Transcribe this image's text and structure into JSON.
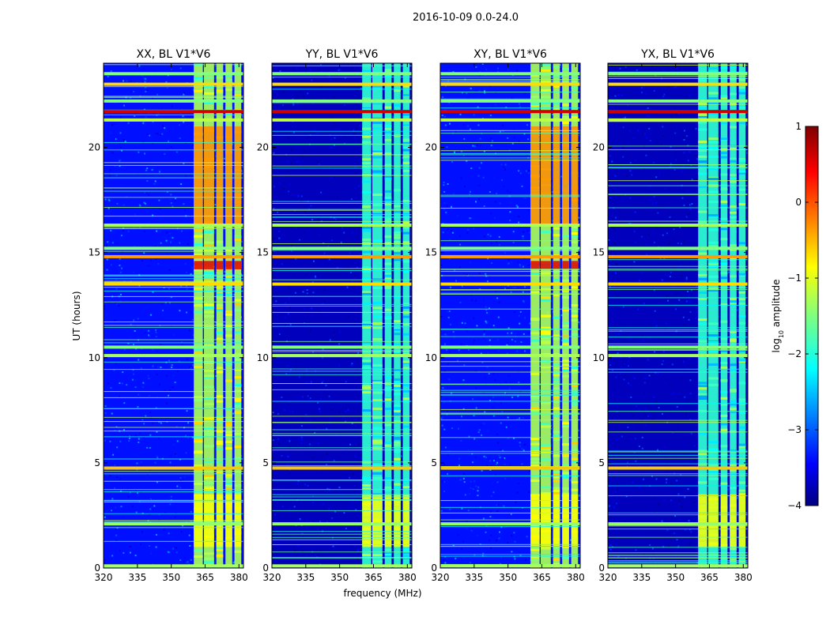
{
  "chart_data": {
    "type": "heatmap",
    "suptitle": "2016-10-09 0.0-24.0",
    "xlabel": "frequency (MHz)",
    "ylabel": "UT (hours)",
    "xlim": [
      320,
      382
    ],
    "ylim": [
      0,
      24
    ],
    "xticks": [
      320,
      335,
      350,
      365,
      380
    ],
    "xtick_labels": [
      "320",
      "335",
      "350",
      "365",
      "380"
    ],
    "yticks": [
      0,
      5,
      10,
      15,
      20
    ],
    "ytick_labels": [
      "0",
      "5",
      "10",
      "15",
      "20"
    ],
    "colorbar": {
      "label_prefix": "log",
      "label_sub": "10",
      "label_suffix": " amplitude",
      "range": [
        -4,
        1
      ],
      "ticks": [
        -4,
        -3,
        -2,
        -1,
        0,
        1
      ],
      "tick_labels": [
        "−4",
        "−3",
        "−2",
        "−1",
        "0",
        "1"
      ],
      "colormap": "jet"
    },
    "panels": [
      {
        "title": "XX, BL V1*V6",
        "pol": "XX",
        "base_level": -3.3,
        "band_level": -1.3
      },
      {
        "title": "YY, BL V1*V6",
        "pol": "YY",
        "base_level": -3.7,
        "band_level": -1.9
      },
      {
        "title": "XY, BL V1*V6",
        "pol": "XY",
        "base_level": -3.3,
        "band_level": -1.3
      },
      {
        "title": "YX, BL V1*V6",
        "pol": "YX",
        "base_level": -3.7,
        "band_level": -1.9
      }
    ],
    "signal_bands_mhz": [
      [
        360,
        364
      ],
      [
        364.5,
        369
      ],
      [
        370,
        373
      ],
      [
        374,
        377
      ],
      [
        378,
        381
      ]
    ],
    "rfi_rows": [
      {
        "ut": 0.1,
        "level": -1.3
      },
      {
        "ut": 2.1,
        "level": -1.4
      },
      {
        "ut": 4.75,
        "level": -0.6
      },
      {
        "ut": 10.1,
        "level": -1.3
      },
      {
        "ut": 10.5,
        "level": -1.5
      },
      {
        "ut": 13.5,
        "level": -0.7
      },
      {
        "ut": 14.8,
        "level": -0.4
      },
      {
        "ut": 15.2,
        "level": -1.5
      },
      {
        "ut": 16.3,
        "level": -1.3
      },
      {
        "ut": 21.3,
        "level": -1.2
      },
      {
        "ut": 21.7,
        "level": 0.6
      },
      {
        "ut": 22.2,
        "level": -1.5
      },
      {
        "ut": 23.0,
        "level": -0.7
      },
      {
        "ut": 23.5,
        "level": -1.5
      }
    ],
    "bright_epochs": [
      {
        "ut_start": 16.3,
        "ut_end": 21.0,
        "level": -0.3,
        "pols": [
          "XX",
          "XY"
        ]
      },
      {
        "ut_start": 14.2,
        "ut_end": 14.6,
        "level": 0.5,
        "pols": [
          "XX",
          "XY"
        ]
      },
      {
        "ut_start": 1.0,
        "ut_end": 3.5,
        "level": -0.9,
        "pols": [
          "XX",
          "YY",
          "XY",
          "YX"
        ]
      }
    ]
  }
}
